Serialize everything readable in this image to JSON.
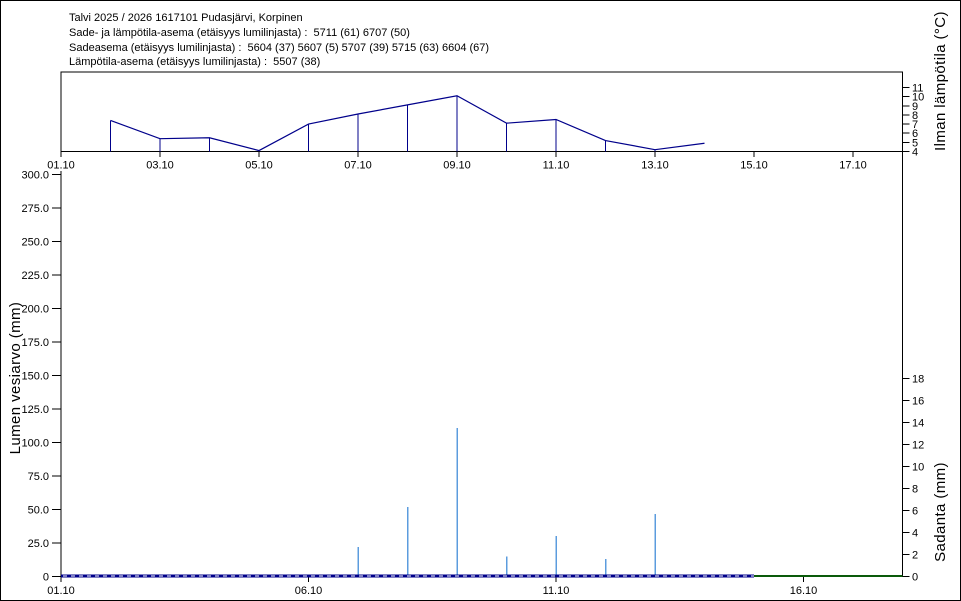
{
  "header": {
    "line1": "Talvi 2025 / 2026 1617101 Pudasjärvi, Korpinen",
    "line2": "Sade- ja lämpötila-asema (etäisyys lumilinjasta) :  5711 (61) 6707 (50)",
    "line3": "Sadeasema (etäisyys lumilinjasta) :  5604 (37) 5607 (5) 5707 (39) 5715 (63) 6604 (67)",
    "line4": "Lämpötila-asema (etäisyys lumilinjasta) :  5507 (38)"
  },
  "chart_data": [
    {
      "type": "line",
      "id": "air-temperature",
      "ylabel_right": "Ilman lämpötila (°C)",
      "x_ticks": [
        "01.10",
        "03.10",
        "05.10",
        "07.10",
        "09.10",
        "11.10",
        "13.10",
        "15.10",
        "17.10"
      ],
      "x_range_days": [
        0,
        17
      ],
      "y_ticks_right": [
        11,
        10,
        9,
        8,
        7,
        6,
        5,
        4
      ],
      "ylim": [
        4,
        12.6
      ],
      "grid": false,
      "series": [
        {
          "name": "daily-air-temperature",
          "color": "#00008B",
          "drop_lines": true,
          "dates": [
            "02.10",
            "03.10",
            "04.10",
            "05.10",
            "06.10",
            "07.10",
            "08.10",
            "09.10",
            "10.10",
            "11.10",
            "12.10",
            "13.10",
            "14.10"
          ],
          "values": [
            7.4,
            5.4,
            5.5,
            4.1,
            7.0,
            8.1,
            9.1,
            10.1,
            7.1,
            7.5,
            5.2,
            4.2,
            4.9
          ]
        }
      ]
    },
    {
      "type": "bar",
      "id": "snow-water-and-precipitation",
      "ylabel_left": "Lumen vesiarvo (mm)",
      "ylabel_right": "Sadanta (mm)",
      "x_ticks": [
        "01.10",
        "06.10",
        "11.10",
        "16.10"
      ],
      "x_range_days": [
        0,
        17
      ],
      "y_ticks_left": [
        "300.0",
        "275.0",
        "250.0",
        "225.0",
        "200.0",
        "175.0",
        "150.0",
        "125.0",
        "100.0",
        "75.0",
        "50.0",
        "25.0",
        "0"
      ],
      "ylim_left": [
        0,
        300
      ],
      "y_ticks_right": [
        18,
        16,
        14,
        12,
        10,
        8,
        6,
        4,
        2,
        0
      ],
      "ylim_right": [
        0,
        18
      ],
      "grid": false,
      "precipitation": {
        "name": "sadanta-bars",
        "color": "#5C9CDE",
        "dates": [
          "07.10",
          "08.10",
          "09.10",
          "10.10",
          "11.10",
          "12.10",
          "13.10"
        ],
        "values": [
          2.7,
          6.3,
          13.5,
          1.8,
          3.7,
          1.6,
          5.7
        ]
      },
      "snow_water_line": {
        "name": "lumen-vesiarvo-line",
        "style": "dashed",
        "color": "#00008B",
        "dash_color": "#FFFFFF",
        "from": "01.10",
        "to": "15.10",
        "value": 0
      },
      "ground_line": {
        "name": "snow-free-line",
        "style": "solid",
        "color": "#0A5A0A",
        "from": "15.10",
        "to": "18.10",
        "value": 0
      }
    }
  ]
}
